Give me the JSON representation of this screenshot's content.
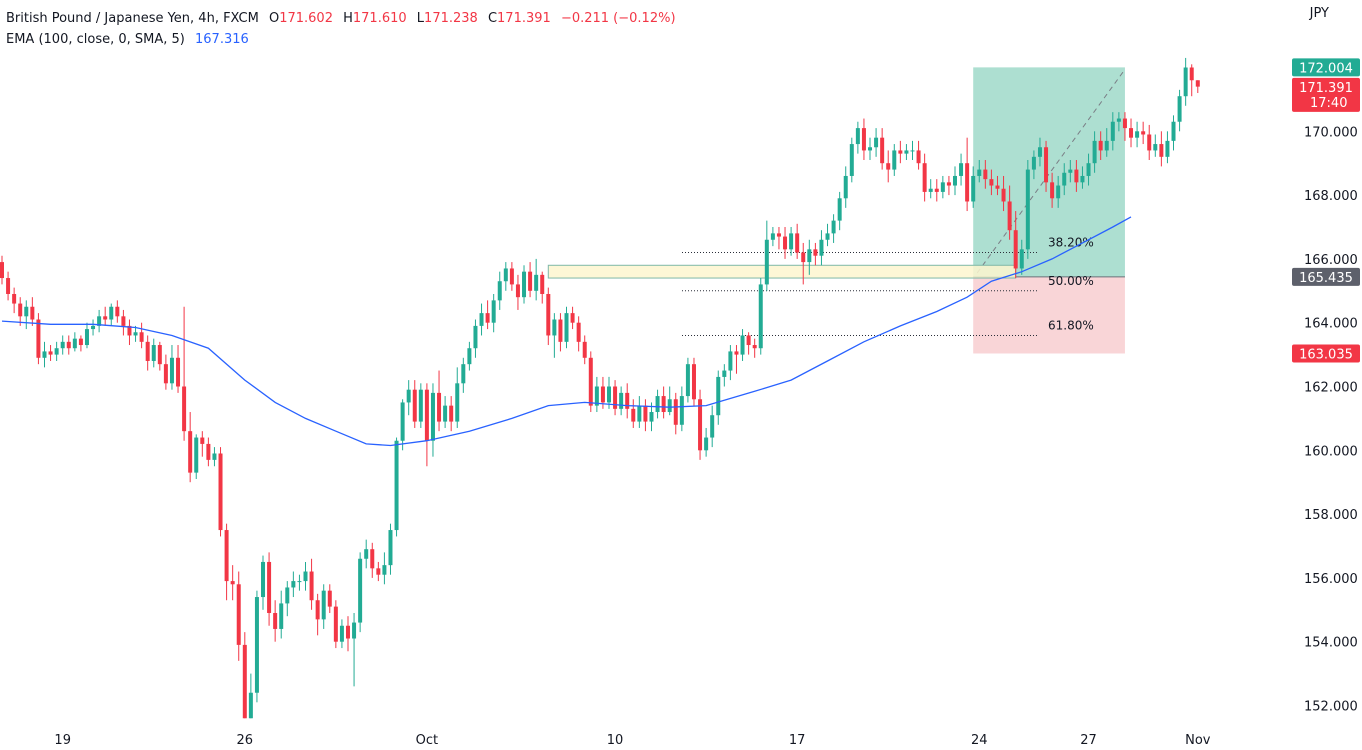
{
  "header": {
    "symbol": "British Pound / Japanese Yen, 4h, FXCM",
    "open_label": "O",
    "open": "171.602",
    "high_label": "H",
    "high": "171.610",
    "low_label": "L",
    "low": "171.238",
    "close_label": "C",
    "close": "171.391",
    "change": "−0.211 (−0.12%)",
    "indicator": "EMA (100, close, 0, SMA, 5)",
    "indicator_value": "167.316"
  },
  "currency": "JPY",
  "colors": {
    "up": "#22ab94",
    "down": "#f23645",
    "ema": "#2962ff",
    "target_zone": "#9fd9c9",
    "stop_zone": "#f8d0d3",
    "box_fill": "#fdf6cf",
    "box_border": "#7fb8a8"
  },
  "chart_data": {
    "type": "candlestick",
    "timeframe": "4h",
    "ylim": [
      151.5,
      173.5
    ],
    "y_ticks": [
      152,
      154,
      156,
      158,
      160,
      162,
      164,
      166,
      168,
      170,
      172
    ],
    "y_tick_labels": [
      "152.000",
      "154.000",
      "156.000",
      "158.000",
      "160.000",
      "162.000",
      "164.000",
      "166.000",
      "168.000",
      "170.000",
      "172.000"
    ],
    "x_ticks": [
      {
        "label": "19",
        "bar": 10
      },
      {
        "label": "26",
        "bar": 40
      },
      {
        "label": "Oct",
        "bar": 70
      },
      {
        "label": "10",
        "bar": 101
      },
      {
        "label": "17",
        "bar": 131
      },
      {
        "label": "24",
        "bar": 161
      },
      {
        "label": "27",
        "bar": 179
      },
      {
        "label": "Nov",
        "bar": 197
      }
    ],
    "candles": [
      [
        165.9,
        165.4,
        166.1,
        165.2
      ],
      [
        165.4,
        164.9,
        165.6,
        164.7
      ],
      [
        164.9,
        164.6,
        165.1,
        164.3
      ],
      [
        164.6,
        164.2,
        164.8,
        163.9
      ],
      [
        164.2,
        164.5,
        164.7,
        163.8
      ],
      [
        164.5,
        164.1,
        164.8,
        163.9
      ],
      [
        164.1,
        162.9,
        164.3,
        162.7
      ],
      [
        162.9,
        163.1,
        163.4,
        162.6
      ],
      [
        163.1,
        163,
        163.3,
        162.8
      ],
      [
        163,
        163.2,
        163.4,
        162.8
      ],
      [
        163.2,
        163.4,
        163.6,
        163
      ],
      [
        163.4,
        163.2,
        163.6,
        163
      ],
      [
        163.2,
        163.5,
        163.7,
        163.1
      ],
      [
        163.5,
        163.3,
        163.6,
        163.1
      ],
      [
        163.3,
        163.8,
        164,
        163.2
      ],
      [
        163.8,
        163.9,
        164.1,
        163.6
      ],
      [
        163.9,
        164.2,
        164.4,
        163.7
      ],
      [
        164.2,
        164.1,
        164.5,
        163.9
      ],
      [
        164.1,
        164.5,
        164.6,
        163.9
      ],
      [
        164.5,
        164.2,
        164.7,
        164
      ],
      [
        164.2,
        163.9,
        164.4,
        163.6
      ],
      [
        163.9,
        163.6,
        164.1,
        163.3
      ],
      [
        163.6,
        163.7,
        163.9,
        163.4
      ],
      [
        163.7,
        163.4,
        164,
        163.2
      ],
      [
        163.4,
        162.8,
        163.6,
        162.5
      ],
      [
        162.8,
        163.3,
        163.5,
        162.6
      ],
      [
        163.3,
        162.7,
        163.4,
        162.5
      ],
      [
        162.7,
        162.1,
        163,
        161.9
      ],
      [
        162.1,
        162.9,
        163.3,
        161.9
      ],
      [
        162.9,
        162,
        163.3,
        161.8
      ],
      [
        162,
        160.6,
        164.5,
        160.3
      ],
      [
        160.6,
        159.3,
        161.2,
        159
      ],
      [
        159.3,
        160.4,
        160.5,
        159.1
      ],
      [
        160.4,
        160.2,
        160.6,
        159.8
      ],
      [
        160.2,
        159.7,
        160.4,
        159.5
      ],
      [
        159.7,
        159.9,
        160.1,
        159.5
      ],
      [
        159.9,
        157.5,
        160.1,
        157.3
      ],
      [
        157.5,
        155.9,
        157.7,
        155.3
      ],
      [
        155.9,
        155.8,
        156.4,
        155.3
      ],
      [
        155.8,
        153.9,
        156.2,
        153.4
      ],
      [
        153.9,
        151.6,
        154.3,
        151.6
      ],
      [
        151.6,
        152.4,
        153,
        151.6
      ],
      [
        152.4,
        155.4,
        155.6,
        152.1
      ],
      [
        155.4,
        156.5,
        156.7,
        155
      ],
      [
        156.5,
        154.9,
        156.8,
        154.5
      ],
      [
        154.9,
        154.4,
        155.3,
        154
      ],
      [
        154.4,
        155.2,
        155.6,
        154.1
      ],
      [
        155.2,
        155.7,
        155.9,
        154.8
      ],
      [
        155.7,
        155.9,
        156.2,
        155.4
      ],
      [
        155.9,
        155.9,
        156.1,
        155.6
      ],
      [
        155.9,
        156.2,
        156.5,
        155.6
      ],
      [
        156.2,
        155.3,
        156.6,
        155
      ],
      [
        155.3,
        154.7,
        155.5,
        154.2
      ],
      [
        154.7,
        155.6,
        155.8,
        154.4
      ],
      [
        155.6,
        155.1,
        155.8,
        154.9
      ],
      [
        155.1,
        154,
        155.3,
        153.8
      ],
      [
        154,
        154.5,
        154.7,
        153.8
      ],
      [
        154.5,
        154.1,
        154.8,
        153.7
      ],
      [
        154.1,
        154.6,
        154.9,
        152.6
      ],
      [
        154.6,
        156.6,
        156.8,
        154.3
      ],
      [
        156.6,
        156.9,
        157.2,
        156.3
      ],
      [
        156.9,
        156.3,
        157.1,
        156
      ],
      [
        156.3,
        156.1,
        156.5,
        155.9
      ],
      [
        156.1,
        156.4,
        156.8,
        155.8
      ],
      [
        156.4,
        157.5,
        157.7,
        156.1
      ],
      [
        157.5,
        160.3,
        160.4,
        157.3
      ],
      [
        160.3,
        161.5,
        161.6,
        160
      ],
      [
        161.5,
        161.9,
        162.2,
        161.1
      ],
      [
        161.9,
        160.9,
        162.2,
        160.7
      ],
      [
        160.9,
        161.9,
        162.1,
        160.7
      ],
      [
        161.9,
        160.3,
        162.1,
        159.5
      ],
      [
        160.3,
        161.8,
        162.1,
        159.8
      ],
      [
        161.8,
        160.9,
        162.5,
        160.6
      ],
      [
        160.9,
        161.4,
        161.7,
        160.7
      ],
      [
        161.4,
        160.9,
        161.7,
        160.6
      ],
      [
        160.9,
        162.1,
        162.6,
        160.7
      ],
      [
        162.1,
        162.7,
        162.9,
        161.8
      ],
      [
        162.7,
        163.2,
        163.4,
        162.5
      ],
      [
        163.2,
        163.9,
        164.1,
        162.9
      ],
      [
        163.9,
        164.3,
        164.6,
        163.6
      ],
      [
        164.3,
        164,
        164.7,
        163.8
      ],
      [
        164,
        164.7,
        164.9,
        163.7
      ],
      [
        164.7,
        165.3,
        165.6,
        164.4
      ],
      [
        165.3,
        165.7,
        165.9,
        165
      ],
      [
        165.7,
        165.2,
        165.9,
        165
      ],
      [
        165.2,
        164.8,
        165.5,
        164.4
      ],
      [
        164.8,
        165.6,
        165.8,
        164.6
      ],
      [
        165.6,
        165,
        165.9,
        164.8
      ],
      [
        165,
        165.5,
        166,
        164.7
      ],
      [
        165.5,
        164.9,
        165.6,
        164.6
      ],
      [
        164.9,
        163.6,
        165.1,
        163.3
      ],
      [
        163.6,
        164.1,
        164.3,
        162.9
      ],
      [
        164.1,
        163.4,
        164.3,
        163.1
      ],
      [
        163.4,
        164.3,
        164.5,
        163.2
      ],
      [
        164.3,
        164,
        164.5,
        163.8
      ],
      [
        164,
        163.4,
        164.2,
        163.1
      ],
      [
        163.4,
        162.9,
        163.6,
        162.7
      ],
      [
        162.9,
        161.4,
        163.1,
        161.2
      ],
      [
        161.4,
        162,
        162.3,
        161.2
      ],
      [
        162,
        161.5,
        162.3,
        161.3
      ],
      [
        161.5,
        162,
        162.3,
        161.3
      ],
      [
        162,
        161.3,
        162.2,
        161.1
      ],
      [
        161.3,
        161.8,
        162,
        161.1
      ],
      [
        161.8,
        161.3,
        162.1,
        161
      ],
      [
        161.3,
        160.9,
        161.6,
        160.7
      ],
      [
        160.9,
        161.4,
        161.7,
        160.7
      ],
      [
        161.4,
        160.9,
        161.6,
        160.6
      ],
      [
        160.9,
        161.2,
        161.5,
        160.6
      ],
      [
        161.2,
        161.7,
        161.9,
        161
      ],
      [
        161.7,
        161.2,
        162,
        161
      ],
      [
        161.2,
        161.6,
        162,
        161.1
      ],
      [
        161.6,
        160.8,
        161.8,
        160.5
      ],
      [
        160.8,
        161.7,
        162,
        160.6
      ],
      [
        161.7,
        162.7,
        162.9,
        161.5
      ],
      [
        162.7,
        161.6,
        162.9,
        161.4
      ],
      [
        161.6,
        160,
        161.9,
        159.7
      ],
      [
        160,
        160.4,
        160.7,
        159.8
      ],
      [
        160.4,
        161.1,
        161.4,
        160.1
      ],
      [
        161.1,
        162.3,
        162.5,
        160.8
      ],
      [
        162.3,
        162.5,
        162.7,
        162
      ],
      [
        162.5,
        163.1,
        163.3,
        162.2
      ],
      [
        163.1,
        163,
        163.3,
        162.4
      ],
      [
        163,
        163.6,
        163.8,
        162.8
      ],
      [
        163.6,
        163.3,
        163.7,
        163
      ],
      [
        163.3,
        163.2,
        163.5,
        162.9
      ],
      [
        163.2,
        165.2,
        165.4,
        163
      ],
      [
        165.2,
        166.6,
        167.2,
        165
      ],
      [
        166.6,
        166.8,
        167,
        166.4
      ],
      [
        166.8,
        166.7,
        167,
        166.3
      ],
      [
        166.7,
        166.3,
        167,
        166
      ],
      [
        166.3,
        166.8,
        167,
        166.1
      ],
      [
        166.8,
        166.2,
        167.1,
        166
      ],
      [
        166.2,
        165.9,
        166.5,
        165.2
      ],
      [
        165.9,
        166.3,
        166.6,
        165.5
      ],
      [
        166.3,
        166.1,
        166.5,
        165.8
      ],
      [
        166.1,
        166.6,
        166.9,
        165.8
      ],
      [
        166.6,
        166.8,
        167.1,
        166.4
      ],
      [
        166.8,
        167.2,
        167.4,
        166.5
      ],
      [
        167.2,
        167.9,
        168.1,
        166.9
      ],
      [
        167.9,
        168.6,
        168.9,
        167.6
      ],
      [
        168.6,
        169.6,
        169.8,
        168.4
      ],
      [
        169.6,
        170.1,
        170.3,
        169.3
      ],
      [
        170.1,
        169.4,
        170.4,
        169.1
      ],
      [
        169.4,
        169.5,
        169.8,
        169.1
      ],
      [
        169.5,
        169.8,
        170.1,
        169.2
      ],
      [
        169.8,
        169,
        170.1,
        168.8
      ],
      [
        169,
        168.8,
        169.4,
        168.4
      ],
      [
        168.8,
        169.4,
        169.6,
        168.6
      ],
      [
        169.4,
        169.3,
        169.7,
        169
      ],
      [
        169.3,
        169.4,
        169.6,
        169.1
      ],
      [
        169.4,
        169.4,
        169.7,
        169.1
      ],
      [
        169.4,
        169,
        169.7,
        168.8
      ],
      [
        169,
        168.1,
        169.3,
        167.8
      ],
      [
        168.1,
        168.2,
        168.5,
        167.9
      ],
      [
        168.2,
        168.1,
        168.5,
        167.8
      ],
      [
        168.1,
        168.4,
        168.6,
        167.9
      ],
      [
        168.4,
        168.3,
        168.6,
        168
      ],
      [
        168.3,
        168.6,
        168.9,
        168
      ],
      [
        168.6,
        169,
        169.3,
        168.3
      ],
      [
        169,
        167.8,
        169.8,
        167.5
      ],
      [
        167.8,
        168.6,
        168.9,
        167.6
      ],
      [
        168.6,
        168.8,
        169.1,
        168.4
      ],
      [
        168.8,
        168.5,
        169.1,
        168.2
      ],
      [
        168.5,
        168.3,
        168.8,
        168
      ],
      [
        168.3,
        168.2,
        168.6,
        168
      ],
      [
        168.2,
        167.8,
        168.6,
        167.5
      ],
      [
        167.8,
        166.9,
        168.3,
        166.6
      ],
      [
        166.9,
        165.7,
        167.5,
        165.4
      ],
      [
        165.7,
        166.3,
        166.6,
        165.5
      ],
      [
        166.3,
        168.8,
        169.1,
        166
      ],
      [
        168.8,
        169.2,
        169.4,
        168.5
      ],
      [
        169.2,
        169.5,
        169.8,
        168.9
      ],
      [
        169.5,
        168.4,
        169.7,
        168.1
      ],
      [
        168.4,
        167.9,
        168.7,
        167.6
      ],
      [
        167.9,
        168.3,
        168.6,
        167.6
      ],
      [
        168.3,
        168.7,
        169,
        168
      ],
      [
        168.7,
        168.8,
        169.1,
        168.4
      ],
      [
        168.8,
        168.4,
        169.1,
        168.1
      ],
      [
        168.4,
        168.6,
        168.9,
        168.2
      ],
      [
        168.6,
        169,
        169.3,
        168.3
      ],
      [
        169,
        169.7,
        170,
        168.7
      ],
      [
        169.7,
        169.4,
        170,
        169.1
      ],
      [
        169.4,
        169.7,
        170.1,
        169.2
      ],
      [
        169.7,
        170.3,
        170.6,
        169.4
      ],
      [
        170.3,
        170.4,
        170.6,
        170
      ],
      [
        170.4,
        170.1,
        170.6,
        169.7
      ],
      [
        170.1,
        169.8,
        170.4,
        169.5
      ],
      [
        169.8,
        170,
        170.3,
        169.5
      ],
      [
        170,
        169.9,
        170.3,
        169.6
      ],
      [
        169.9,
        169.4,
        170.2,
        169.1
      ],
      [
        169.4,
        169.6,
        169.9,
        169.2
      ],
      [
        169.6,
        169.2,
        170,
        168.9
      ],
      [
        169.2,
        169.7,
        170,
        169
      ],
      [
        169.7,
        170.3,
        170.5,
        169.4
      ],
      [
        170.3,
        171.1,
        171.3,
        170
      ],
      [
        171.1,
        172,
        172.3,
        170.8
      ],
      [
        172,
        171.6,
        172.1,
        171.1
      ],
      [
        171.6,
        171.4,
        171.6,
        171.2
      ]
    ],
    "ema": {
      "name": "EMA (100, close, 0, SMA, 5)",
      "last_value": 167.316
    },
    "ema_path": [
      [
        0,
        164.05
      ],
      [
        8,
        163.95
      ],
      [
        15,
        163.95
      ],
      [
        22,
        163.85
      ],
      [
        28,
        163.6
      ],
      [
        34,
        163.2
      ],
      [
        40,
        162.2
      ],
      [
        45,
        161.5
      ],
      [
        50,
        161.0
      ],
      [
        55,
        160.6
      ],
      [
        60,
        160.2
      ],
      [
        64,
        160.15
      ],
      [
        70,
        160.3
      ],
      [
        77,
        160.6
      ],
      [
        84,
        161.0
      ],
      [
        90,
        161.4
      ],
      [
        96,
        161.5
      ],
      [
        103,
        161.4
      ],
      [
        110,
        161.35
      ],
      [
        116,
        161.4
      ],
      [
        124,
        161.85
      ],
      [
        130,
        162.2
      ],
      [
        136,
        162.8
      ],
      [
        142,
        163.4
      ],
      [
        148,
        163.9
      ],
      [
        154,
        164.35
      ],
      [
        159,
        164.8
      ],
      [
        163,
        165.3
      ],
      [
        168,
        165.6
      ],
      [
        173,
        166.0
      ],
      [
        178,
        166.5
      ],
      [
        183,
        167.0
      ],
      [
        186,
        167.316
      ]
    ],
    "price_tags": [
      {
        "label": "172.004",
        "value": 172.004,
        "color": "#22ab94"
      },
      {
        "label": "171.391",
        "sub": "17:40",
        "value": 171.391,
        "color": "#f23645"
      },
      {
        "label": "165.435",
        "value": 165.435,
        "color": "#5d606b"
      },
      {
        "label": "163.035",
        "value": 163.035,
        "color": "#f23645"
      }
    ],
    "fib_levels": [
      {
        "label": "38.20%",
        "value": 166.2
      },
      {
        "label": "50.00%",
        "value": 165.0
      },
      {
        "label": "61.80%",
        "value": 163.6
      }
    ],
    "position_tool": {
      "entry": 165.435,
      "target": 172.004,
      "stop": 163.035,
      "start_bar": 160,
      "end_bar": 185
    },
    "highlight_box": {
      "top": 165.8,
      "bottom": 165.4,
      "start_bar": 90,
      "end_bar": 167
    }
  }
}
